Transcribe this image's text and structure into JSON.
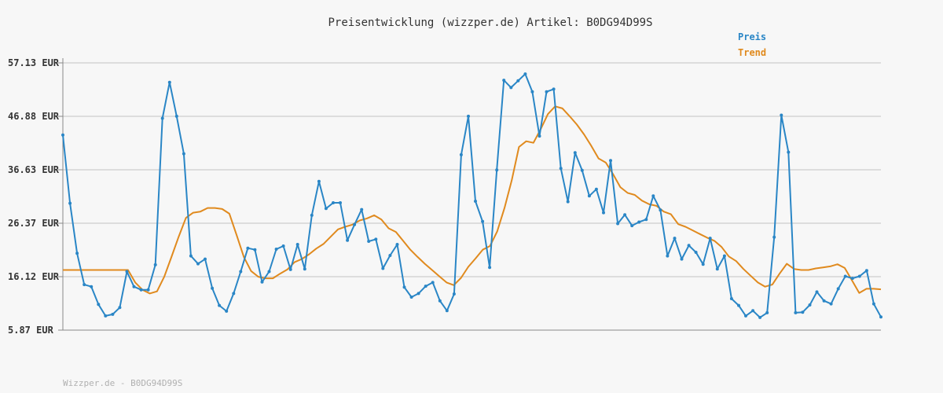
{
  "chart_data": {
    "type": "line",
    "title": "Preisentwicklung (wizzper.de) Artikel: B0DG94D99S",
    "xlabel": "",
    "ylabel": "",
    "yticks": [
      "5.87 EUR",
      "16.12 EUR",
      "26.37 EUR",
      "36.63 EUR",
      "46.88 EUR",
      "57.13 EUR"
    ],
    "ylim": [
      5.87,
      57.13
    ],
    "grid": "horizontal",
    "legend_position": "top-right",
    "footer": "Wizzper.de - B0DG94D99S",
    "colors": {
      "preis": "#2a86c6",
      "trend": "#e08a1e",
      "grid": "#dddddd",
      "axis": "#888888"
    },
    "series": [
      {
        "name": "Preis",
        "values": [
          43.3,
          30.2,
          20.6,
          14.6,
          14.2,
          10.8,
          8.6,
          8.9,
          10.2,
          17.1,
          14.2,
          13.6,
          13.6,
          18.4,
          46.5,
          53.4,
          46.9,
          39.7,
          20.1,
          18.6,
          19.5,
          13.9,
          10.6,
          9.5,
          12.9,
          17.1,
          21.6,
          21.3,
          15.1,
          17.1,
          21.4,
          22.0,
          17.5,
          22.3,
          17.6,
          27.9,
          34.4,
          29.2,
          30.3,
          30.3,
          23.1,
          26.1,
          29.0,
          22.9,
          23.3,
          17.7,
          20.2,
          22.3,
          14.1,
          12.2,
          12.9,
          14.3,
          15.0,
          11.5,
          9.6,
          12.8,
          39.5,
          46.9,
          30.6,
          26.7,
          17.9,
          36.6,
          53.8,
          52.4,
          53.7,
          55.0,
          51.6,
          43.1,
          51.6,
          52.1,
          36.9,
          30.5,
          39.9,
          36.5,
          31.6,
          32.9,
          28.4,
          38.4,
          26.3,
          28.0,
          25.9,
          26.6,
          27.1,
          31.6,
          28.9,
          20.1,
          23.5,
          19.5,
          22.1,
          20.8,
          18.5,
          23.5,
          17.6,
          20.1,
          11.9,
          10.6,
          8.6,
          9.6,
          8.3,
          9.2,
          23.7,
          47.1,
          40.0,
          9.2,
          9.3,
          10.7,
          13.2,
          11.5,
          10.9,
          13.8,
          16.2,
          15.8,
          16.2,
          17.3,
          10.9,
          8.4
        ]
      },
      {
        "name": "Trend",
        "values": [
          17.4,
          17.4,
          17.4,
          17.4,
          17.4,
          17.4,
          17.4,
          17.4,
          17.4,
          17.4,
          15.0,
          13.6,
          12.9,
          13.3,
          16.1,
          19.9,
          23.8,
          27.4,
          28.4,
          28.6,
          29.3,
          29.3,
          29.1,
          28.2,
          24.1,
          19.9,
          17.2,
          16.1,
          15.8,
          15.8,
          16.7,
          17.5,
          18.9,
          19.5,
          20.4,
          21.5,
          22.4,
          23.8,
          25.2,
          25.7,
          26.1,
          26.9,
          27.3,
          27.9,
          27.1,
          25.4,
          24.7,
          23.0,
          21.3,
          19.9,
          18.6,
          17.4,
          16.2,
          15.0,
          14.5,
          15.9,
          18.0,
          19.6,
          21.3,
          22.0,
          24.8,
          29.3,
          34.6,
          41.0,
          42.1,
          41.8,
          44.4,
          47.3,
          48.8,
          48.4,
          46.9,
          45.3,
          43.4,
          41.2,
          38.8,
          38.0,
          35.8,
          33.3,
          32.2,
          31.8,
          30.7,
          30.0,
          29.7,
          28.6,
          28.1,
          26.2,
          25.7,
          25.0,
          24.3,
          23.6,
          23.0,
          21.8,
          20.0,
          19.1,
          17.6,
          16.3,
          15.0,
          14.2,
          14.6,
          16.7,
          18.6,
          17.6,
          17.4,
          17.4,
          17.7,
          17.9,
          18.1,
          18.5,
          17.8,
          15.4,
          13.0,
          13.8,
          13.8,
          13.7
        ]
      }
    ]
  }
}
